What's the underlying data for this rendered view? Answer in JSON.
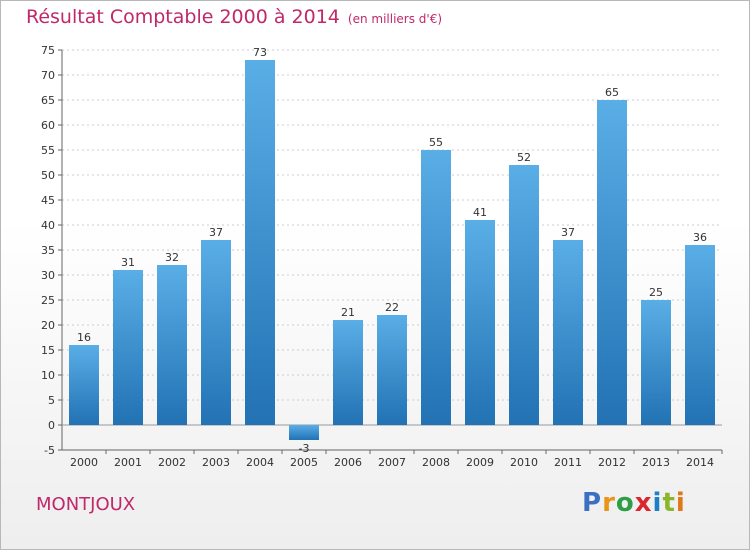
{
  "header": {
    "title": "Résultat Comptable 2000 à 2014",
    "subtitle": "(en milliers d'€)"
  },
  "footer": {
    "city": "MONTJOUX",
    "logo_letters": [
      "P",
      "r",
      "o",
      "x",
      "i",
      "t",
      "i"
    ]
  },
  "colors": {
    "bar_light": "#5aaee6",
    "bar_dark": "#2272b4",
    "title": "#c0286a",
    "grid": "#cccccc"
  },
  "chart_data": {
    "type": "bar",
    "title": "Résultat Comptable 2000 à 2014",
    "subtitle": "(en milliers d'€)",
    "categories": [
      "2000",
      "2001",
      "2002",
      "2003",
      "2004",
      "2005",
      "2006",
      "2007",
      "2008",
      "2009",
      "2010",
      "2011",
      "2012",
      "2013",
      "2014"
    ],
    "values": [
      16,
      31,
      32,
      37,
      73,
      -3,
      21,
      22,
      55,
      41,
      52,
      37,
      65,
      25,
      36
    ],
    "value_labels": [
      "16",
      "31",
      "32",
      "37",
      "73",
      "-3",
      "21",
      "22",
      "55",
      "41",
      "52",
      "37",
      "65",
      "25",
      "36"
    ],
    "ylim": [
      -5,
      75
    ],
    "yticks": [
      -5,
      0,
      5,
      10,
      15,
      20,
      25,
      30,
      35,
      40,
      45,
      50,
      55,
      60,
      65,
      70,
      75
    ],
    "grid": true,
    "legend": "none"
  }
}
